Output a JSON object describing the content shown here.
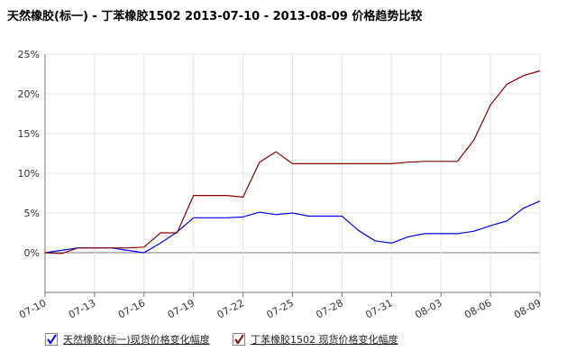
{
  "title": "天然橡胶(标一) - 丁苯橡胶1502 2013-07-10 - 2013-08-09 价格趋势比较",
  "chart_data": {
    "type": "line",
    "x": [
      "07-10",
      "07-11",
      "07-12",
      "07-13",
      "07-14",
      "07-15",
      "07-16",
      "07-17",
      "07-18",
      "07-19",
      "07-20",
      "07-21",
      "07-22",
      "07-23",
      "07-24",
      "07-25",
      "07-26",
      "07-27",
      "07-28",
      "07-29",
      "07-30",
      "07-31",
      "08-01",
      "08-02",
      "08-03",
      "08-04",
      "08-05",
      "08-06",
      "08-07",
      "08-08",
      "08-09"
    ],
    "x_tick_labels": [
      "07-10",
      "07-13",
      "07-16",
      "07-19",
      "07-22",
      "07-25",
      "07-28",
      "07-31",
      "08-03",
      "08-06",
      "08-09"
    ],
    "y_ticks": [
      0,
      5,
      10,
      15,
      20,
      25
    ],
    "y_tick_labels": [
      "0%",
      "5%",
      "10%",
      "15%",
      "20%",
      "25%"
    ],
    "ylim": [
      -5,
      25
    ],
    "grid": true,
    "legend_position": "bottom",
    "series": [
      {
        "name": "天然橡胶(标一)现货价格变化幅度",
        "color": "#0000ee",
        "values": [
          0,
          0.3,
          0.6,
          0.6,
          0.6,
          0.3,
          0,
          1.2,
          2.6,
          4.4,
          4.4,
          4.4,
          4.5,
          5.1,
          4.8,
          5.0,
          4.6,
          4.6,
          4.6,
          2.8,
          1.5,
          1.2,
          2.0,
          2.4,
          2.4,
          2.4,
          2.7,
          3.4,
          4.0,
          5.6,
          6.5
        ]
      },
      {
        "name": "丁苯橡胶1502 现货价格变化幅度",
        "color": "#8b0000",
        "values": [
          0,
          -0.1,
          0.6,
          0.6,
          0.6,
          0.6,
          0.7,
          2.5,
          2.5,
          7.2,
          7.2,
          7.2,
          7.0,
          11.4,
          12.7,
          11.2,
          11.2,
          11.2,
          11.2,
          11.2,
          11.2,
          11.2,
          11.4,
          11.5,
          11.5,
          11.5,
          14.2,
          18.6,
          21.2,
          22.3,
          22.9
        ]
      }
    ]
  },
  "legend": {
    "items": [
      {
        "label": "天然橡胶(标一)现货价格变化幅度",
        "color": "#0000ee"
      },
      {
        "label": "丁苯橡胶1502 现货价格变化幅度",
        "color": "#8b0000"
      }
    ]
  }
}
